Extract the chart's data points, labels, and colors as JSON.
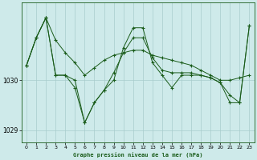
{
  "title": "Graphe pression niveau de la mer (hPa)",
  "background_color": "#ceeaea",
  "grid_color": "#a8cccc",
  "line_color": "#1a5c1a",
  "xlim": [
    -0.5,
    23.5
  ],
  "ylim": [
    1028.75,
    1031.55
  ],
  "yticks": [
    1029,
    1030
  ],
  "xticks": [
    0,
    1,
    2,
    3,
    4,
    5,
    6,
    7,
    8,
    9,
    10,
    11,
    12,
    13,
    14,
    15,
    16,
    17,
    18,
    19,
    20,
    21,
    22,
    23
  ],
  "series": [
    [
      1030.3,
      1030.85,
      1031.25,
      1030.8,
      1030.55,
      1030.35,
      1030.1,
      1030.25,
      1030.4,
      1030.5,
      1030.55,
      1030.6,
      1030.6,
      1030.5,
      1030.45,
      1030.4,
      1030.35,
      1030.3,
      1030.2,
      1030.1,
      1030.0,
      1030.0,
      1030.05,
      1030.1
    ],
    [
      1030.3,
      1030.85,
      1031.25,
      1030.1,
      1030.1,
      1030.0,
      1029.15,
      1029.55,
      1029.8,
      1030.15,
      1030.55,
      1030.85,
      1030.85,
      1030.45,
      1030.2,
      1030.15,
      1030.15,
      1030.15,
      1030.1,
      1030.05,
      1029.95,
      1029.7,
      1029.55,
      1031.1
    ],
    [
      1030.3,
      1030.85,
      1031.25,
      1030.1,
      1030.1,
      1029.85,
      1029.15,
      1029.55,
      1029.8,
      1030.0,
      1030.65,
      1031.05,
      1031.05,
      1030.35,
      1030.1,
      1029.85,
      1030.1,
      1030.1,
      1030.1,
      1030.05,
      1029.95,
      1029.55,
      1029.55,
      1031.1
    ]
  ]
}
